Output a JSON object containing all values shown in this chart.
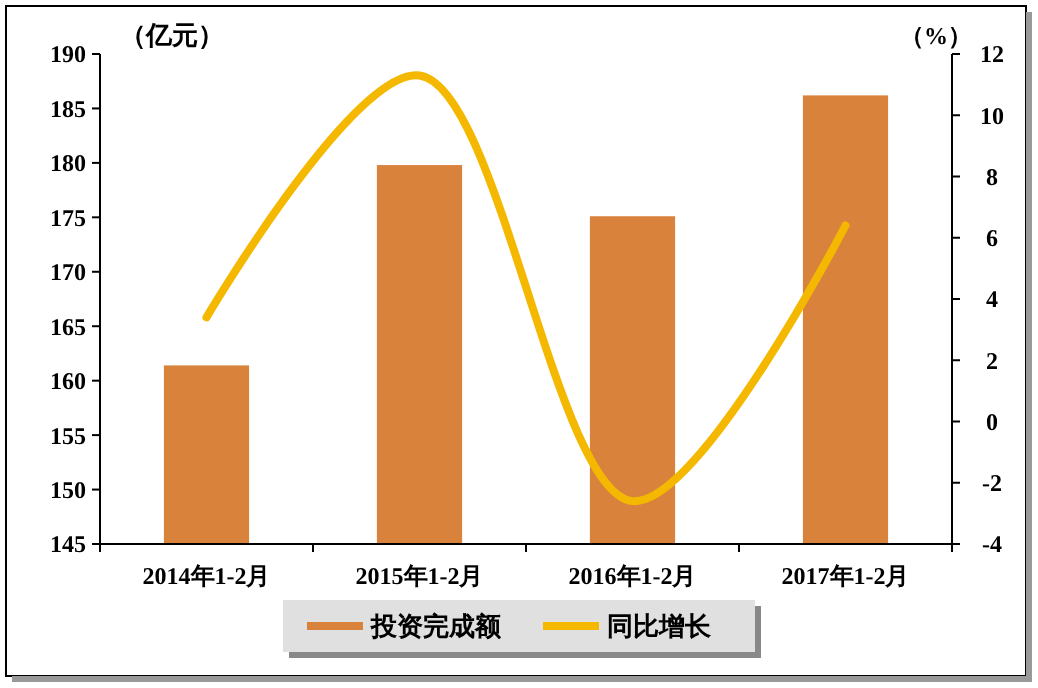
{
  "chart_data": {
    "type": "bar",
    "ylabel": "（亿元）",
    "y2label": "（%）",
    "categories": [
      "2014年1-2月",
      "2015年1-2月",
      "2016年1-2月",
      "2017年1-2月"
    ],
    "series": [
      {
        "name": "投资完成额",
        "color": "#d8823c",
        "values": [
          161.4,
          179.8,
          175.1,
          186.2
        ]
      },
      {
        "name": "同比增长",
        "type": "line",
        "axis": "y2",
        "color": "#f5b800",
        "values": [
          3.4,
          11.3,
          -2.6,
          6.4
        ]
      }
    ],
    "ylim": [
      145,
      190
    ],
    "yticks": [
      145,
      150,
      155,
      160,
      165,
      170,
      175,
      180,
      185,
      190
    ],
    "y2lim": [
      -4,
      12
    ],
    "y2ticks": [
      -4,
      -2,
      0,
      2,
      4,
      6,
      8,
      10,
      12
    ],
    "legend": "bottom",
    "grid": false
  }
}
